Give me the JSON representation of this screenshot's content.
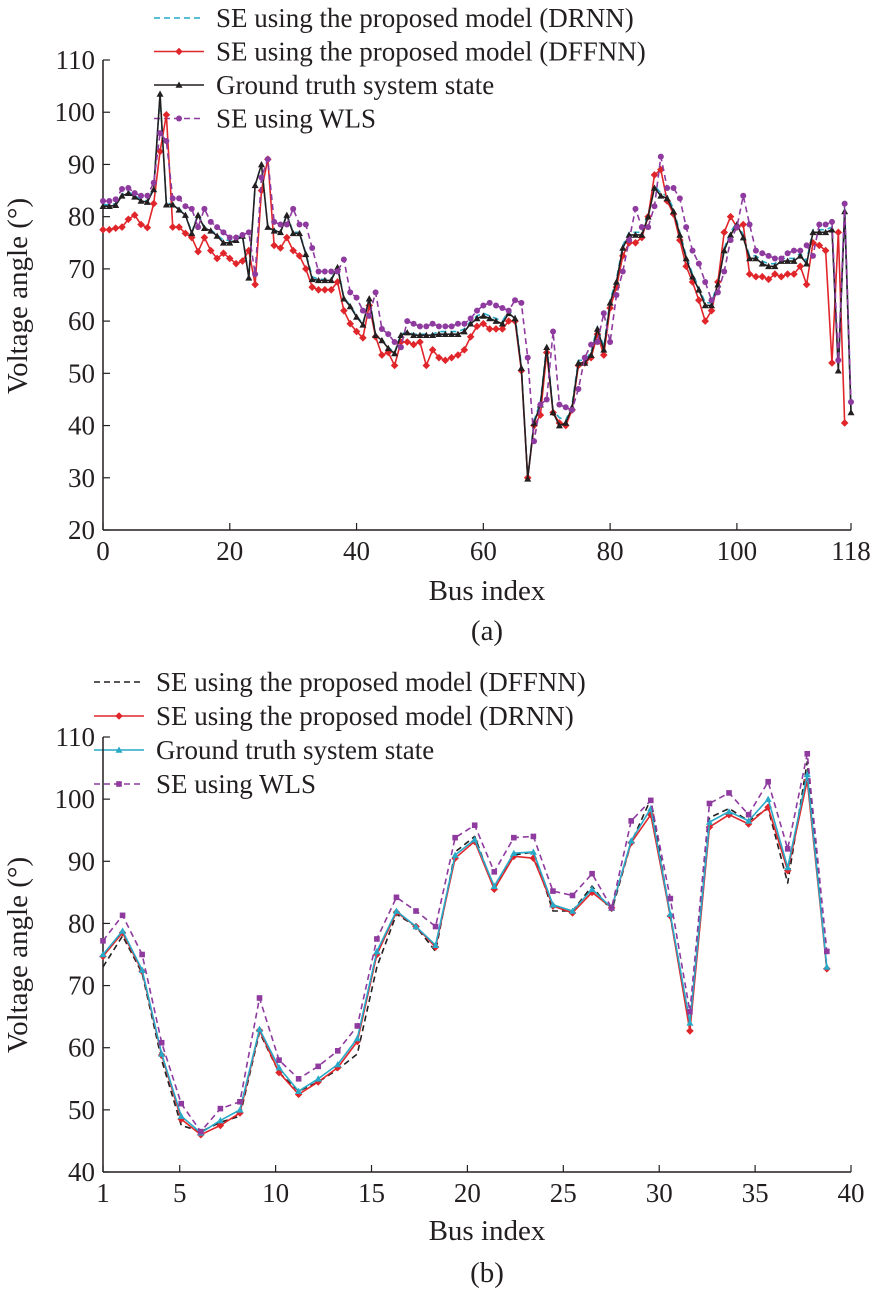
{
  "chart_data": [
    {
      "type": "line",
      "xlabel": "Bus index",
      "ylabel": "Voltage angle (°)",
      "caption": "(a)",
      "xlim": [
        0,
        118
      ],
      "ylim": [
        20,
        110
      ],
      "xticks": [
        0,
        20,
        40,
        60,
        80,
        100,
        118
      ],
      "yticks": [
        20,
        30,
        40,
        50,
        60,
        70,
        80,
        90,
        100,
        110
      ],
      "legend_position": "top-center",
      "series": [
        {
          "name": "SE using the proposed model (DRNN)",
          "color": "#27a9c7",
          "dash": "dashed",
          "marker": "none",
          "values": [
            82.3,
            82.3,
            82.5,
            84.3,
            84.8,
            84.0,
            83.3,
            83.0,
            85.5,
            103.2,
            82.5,
            82.5,
            81.5,
            80.5,
            77.0,
            80.5,
            78.0,
            77.5,
            76.5,
            75.5,
            75.5,
            75.8,
            76.5,
            68.5,
            86.0,
            90.0,
            78.0,
            77.5,
            77.0,
            80.5,
            77.0,
            77.0,
            73.0,
            68.5,
            68.0,
            68.0,
            68.0,
            70.5,
            64.5,
            63.0,
            61.0,
            59.5,
            64.5,
            57.5,
            56.5,
            55.0,
            54.0,
            57.5,
            58.0,
            57.5,
            57.5,
            57.5,
            57.5,
            58.0,
            58.0,
            58.0,
            58.0,
            58.5,
            60.0,
            61.0,
            61.5,
            61.0,
            60.5,
            60.0,
            62.0,
            61.0,
            51.5,
            30.0,
            41.0,
            44.5,
            55.5,
            43.0,
            41.5,
            41.0,
            44.0,
            52.5,
            52.5,
            54.0,
            59.0,
            55.0,
            64.0,
            68.0,
            74.5,
            77.0,
            77.0,
            77.0,
            80.5,
            86.0,
            84.5,
            84.0,
            81.5,
            77.0,
            72.5,
            69.0,
            66.5,
            63.5,
            63.5,
            67.5,
            74.0,
            77.0,
            79.0,
            76.5,
            72.5,
            72.5,
            71.5,
            71.0,
            71.0,
            72.0,
            72.0,
            72.0,
            73.0,
            71.5,
            77.5,
            77.5,
            77.5,
            78.0,
            51.0,
            81.5,
            43.0
          ]
        },
        {
          "name": "SE using the proposed model (DFFNN)",
          "color": "#e0262b",
          "dash": "solid",
          "marker": "diamond",
          "values": [
            77.5,
            77.5,
            77.8,
            78.0,
            79.5,
            80.3,
            78.5,
            77.9,
            82.5,
            92.5,
            99.5,
            78.0,
            78.0,
            76.8,
            76.0,
            73.3,
            76.0,
            73.5,
            72.0,
            73.0,
            72.0,
            71.0,
            71.5,
            73.5,
            67.0,
            85.0,
            91.0,
            74.5,
            74.0,
            76.0,
            73.5,
            72.5,
            70.0,
            66.5,
            66.0,
            66.0,
            66.0,
            67.5,
            62.0,
            59.5,
            58.0,
            56.8,
            63.0,
            57.0,
            53.5,
            54.0,
            51.5,
            56.0,
            56.0,
            55.5,
            56.0,
            51.5,
            54.5,
            53.0,
            52.5,
            53.0,
            53.5,
            54.5,
            57.0,
            59.0,
            59.5,
            58.5,
            58.5,
            58.5,
            60.0,
            60.0,
            50.5,
            30.0,
            40.0,
            42.0,
            54.0,
            42.5,
            40.5,
            40.0,
            43.0,
            51.5,
            52.0,
            53.0,
            57.5,
            53.5,
            62.5,
            66.5,
            72.5,
            75.0,
            75.0,
            76.0,
            80.0,
            88.0,
            89.0,
            83.0,
            80.5,
            75.5,
            70.5,
            67.5,
            64.0,
            60.0,
            62.0,
            67.5,
            77.0,
            80.0,
            78.0,
            78.5,
            69.0,
            68.5,
            68.5,
            68.0,
            69.0,
            68.5,
            69.0,
            69.0,
            70.5,
            67.0,
            75.0,
            74.5,
            73.5,
            52.0,
            77.0,
            40.5
          ]
        },
        {
          "name": "Ground truth system state",
          "color": "#231f20",
          "dash": "solid",
          "marker": "triangle",
          "values": [
            82.0,
            82.0,
            82.2,
            84.0,
            84.5,
            83.8,
            83.0,
            82.8,
            85.2,
            103.5,
            82.3,
            82.3,
            81.3,
            80.3,
            76.8,
            80.3,
            77.8,
            77.3,
            76.3,
            75.0,
            75.0,
            75.5,
            76.3,
            68.3,
            86.0,
            90.0,
            78.0,
            77.3,
            77.0,
            80.3,
            76.8,
            76.8,
            72.8,
            68.0,
            67.8,
            67.8,
            67.8,
            70.3,
            64.3,
            62.8,
            60.8,
            59.3,
            64.3,
            57.3,
            56.3,
            54.8,
            53.8,
            57.3,
            57.8,
            57.3,
            57.3,
            57.3,
            57.3,
            57.5,
            57.5,
            57.5,
            57.5,
            58.0,
            59.5,
            60.5,
            61.0,
            60.5,
            60.0,
            59.5,
            61.5,
            60.5,
            51.0,
            29.8,
            40.5,
            44.0,
            55.0,
            42.5,
            40.0,
            40.5,
            43.5,
            52.0,
            52.0,
            53.5,
            58.5,
            54.5,
            63.5,
            67.5,
            74.0,
            76.5,
            76.5,
            76.5,
            80.0,
            85.5,
            84.0,
            83.5,
            81.0,
            76.5,
            72.0,
            68.5,
            66.0,
            63.0,
            63.0,
            67.0,
            73.5,
            76.5,
            78.5,
            76.0,
            72.0,
            72.0,
            71.0,
            70.5,
            70.5,
            71.5,
            71.5,
            71.5,
            72.5,
            71.0,
            77.0,
            77.0,
            77.0,
            77.5,
            50.5,
            81.0,
            42.5
          ]
        },
        {
          "name": "SE using WLS",
          "color": "#8e3a9f",
          "dash": "dashed",
          "marker": "circle",
          "values": [
            83.0,
            83.0,
            83.3,
            85.3,
            85.5,
            84.5,
            84.0,
            84.0,
            86.5,
            96.0,
            94.5,
            83.5,
            83.5,
            82.0,
            81.5,
            78.0,
            81.5,
            79.0,
            78.0,
            77.0,
            76.0,
            76.0,
            76.5,
            77.0,
            69.0,
            87.5,
            91.0,
            79.0,
            78.5,
            78.5,
            81.5,
            78.5,
            78.5,
            74.0,
            69.5,
            69.5,
            69.5,
            69.5,
            71.8,
            65.5,
            64.5,
            62.0,
            61.0,
            65.5,
            58.5,
            57.5,
            56.0,
            55.0,
            60.0,
            59.5,
            59.0,
            59.0,
            59.5,
            59.0,
            59.0,
            59.0,
            59.5,
            59.5,
            60.5,
            62.0,
            63.0,
            63.5,
            63.0,
            62.5,
            62.0,
            64.0,
            63.5,
            53.0,
            37.0,
            44.0,
            45.0,
            58.0,
            44.0,
            43.5,
            43.0,
            47.0,
            53.0,
            55.5,
            56.0,
            61.5,
            56.0,
            65.0,
            69.5,
            75.5,
            81.5,
            78.0,
            78.0,
            82.0,
            91.5,
            85.5,
            85.5,
            83.5,
            78.0,
            73.5,
            71.0,
            67.5,
            64.0,
            65.5,
            69.5,
            75.5,
            78.0,
            84.0,
            78.5,
            73.5,
            73.0,
            72.5,
            72.0,
            72.0,
            73.0,
            73.5,
            73.5,
            74.5,
            72.5,
            78.5,
            78.5,
            79.0,
            52.5,
            82.5,
            44.5
          ]
        }
      ]
    },
    {
      "type": "line",
      "xlabel": "Bus index",
      "ylabel": "Voltage angle (°)",
      "caption": "(b)",
      "xlim": [
        1,
        40
      ],
      "ylim": [
        40,
        110
      ],
      "xticks": [
        1,
        5,
        10,
        15,
        20,
        25,
        30,
        35,
        40
      ],
      "yticks": [
        40,
        50,
        60,
        70,
        80,
        90,
        100,
        110
      ],
      "legend_position": "top-left",
      "series": [
        {
          "name": "SE using the proposed model (DFFNN)",
          "color": "#231f20",
          "dash": "dashed",
          "marker": "none",
          "values": [
            73.0,
            78.0,
            72.0,
            58.0,
            47.5,
            46.5,
            48.0,
            49.0,
            62.5,
            56.0,
            53.0,
            54.5,
            56.5,
            59.0,
            73.0,
            81.5,
            79.5,
            75.5,
            91.5,
            94.0,
            85.5,
            91.0,
            91.5,
            82.0,
            82.0,
            86.0,
            82.0,
            93.0,
            100.0,
            81.0,
            64.0,
            97.0,
            98.5,
            96.5,
            98.5,
            86.5,
            106.0,
            72.5
          ]
        },
        {
          "name": "SE using the proposed model (DRNN)",
          "color": "#e0262b",
          "dash": "solid",
          "marker": "diamond",
          "values": [
            74.7,
            78.5,
            72.3,
            58.8,
            48.5,
            46.0,
            47.5,
            49.5,
            62.8,
            56.0,
            52.5,
            54.5,
            56.8,
            61.0,
            75.0,
            81.8,
            79.5,
            76.2,
            90.5,
            93.2,
            85.5,
            90.8,
            90.5,
            82.8,
            81.7,
            85.0,
            82.5,
            93.0,
            97.5,
            81.2,
            62.7,
            95.5,
            97.5,
            96.0,
            98.7,
            88.5,
            103.0,
            72.7
          ]
        },
        {
          "name": "Ground truth system state",
          "color": "#27a9c7",
          "dash": "solid",
          "marker": "triangle",
          "values": [
            75.0,
            78.8,
            72.5,
            59.0,
            49.0,
            46.3,
            48.3,
            50.0,
            63.0,
            56.8,
            53.0,
            55.0,
            57.3,
            61.5,
            75.5,
            82.0,
            79.5,
            76.5,
            91.0,
            93.5,
            86.0,
            91.3,
            91.5,
            83.0,
            82.0,
            85.5,
            82.5,
            93.3,
            98.5,
            81.5,
            64.0,
            96.3,
            98.0,
            96.5,
            100.0,
            89.0,
            104.0,
            73.0
          ]
        },
        {
          "name": "SE using WLS",
          "color": "#8e3a9f",
          "dash": "dashed",
          "marker": "square",
          "values": [
            77.2,
            81.3,
            75.0,
            60.8,
            51.0,
            46.5,
            50.2,
            51.3,
            68.0,
            58.0,
            55.0,
            57.0,
            59.5,
            63.5,
            77.5,
            84.2,
            82.0,
            79.5,
            93.8,
            95.8,
            88.3,
            93.8,
            94.0,
            85.2,
            84.5,
            88.0,
            82.5,
            96.5,
            99.8,
            84.0,
            65.8,
            99.3,
            101.0,
            97.5,
            102.8,
            92.0,
            107.3,
            75.5
          ]
        }
      ]
    }
  ]
}
